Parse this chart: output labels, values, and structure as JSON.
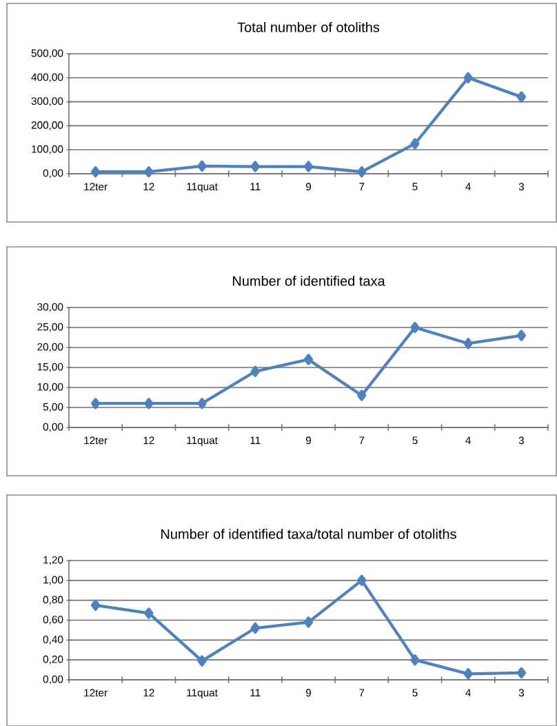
{
  "chart_data": [
    {
      "type": "line",
      "title": "Total number of otoliths",
      "categories": [
        "12ter",
        "12",
        "11quat",
        "11",
        "9",
        "7",
        "5",
        "4",
        "3"
      ],
      "values": [
        8,
        8,
        32,
        30,
        30,
        8,
        125,
        400,
        320
      ],
      "color": "#4f81bd",
      "marker": "diamond",
      "grid": "y",
      "ylim": [
        0,
        500
      ],
      "yticks": [
        {
          "value": 0,
          "label": "0,00"
        },
        {
          "value": 100,
          "label": "100,00"
        },
        {
          "value": 200,
          "label": "200,00"
        },
        {
          "value": 300,
          "label": "300,00"
        },
        {
          "value": 400,
          "label": "400,00"
        },
        {
          "value": 500,
          "label": "500,00"
        }
      ]
    },
    {
      "type": "line",
      "title": "Number of identified taxa",
      "categories": [
        "12ter",
        "12",
        "11quat",
        "11",
        "9",
        "7",
        "5",
        "4",
        "3"
      ],
      "values": [
        6,
        6,
        6,
        14,
        17,
        8,
        25,
        21,
        23
      ],
      "color": "#4f81bd",
      "marker": "diamond",
      "grid": "y",
      "ylim": [
        0,
        30
      ],
      "yticks": [
        {
          "value": 0,
          "label": "0,00"
        },
        {
          "value": 5,
          "label": "5,00"
        },
        {
          "value": 10,
          "label": "10,00"
        },
        {
          "value": 15,
          "label": "15,00"
        },
        {
          "value": 20,
          "label": "20,00"
        },
        {
          "value": 25,
          "label": "25,00"
        },
        {
          "value": 30,
          "label": "30,00"
        }
      ]
    },
    {
      "type": "line",
      "title": "Number of identified taxa/total number of otoliths",
      "categories": [
        "12ter",
        "12",
        "11quat",
        "11",
        "9",
        "7",
        "5",
        "4",
        "3"
      ],
      "values": [
        0.75,
        0.67,
        0.19,
        0.52,
        0.58,
        1.0,
        0.2,
        0.06,
        0.07
      ],
      "color": "#4f81bd",
      "marker": "diamond",
      "grid": "y",
      "ylim": [
        0,
        1.2
      ],
      "yticks": [
        {
          "value": 0,
          "label": "0,00"
        },
        {
          "value": 0.2,
          "label": "0,20"
        },
        {
          "value": 0.4,
          "label": "0,40"
        },
        {
          "value": 0.6,
          "label": "0,60"
        },
        {
          "value": 0.8,
          "label": "0,80"
        },
        {
          "value": 1.0,
          "label": "1,00"
        },
        {
          "value": 1.2,
          "label": "1,20"
        }
      ]
    }
  ]
}
